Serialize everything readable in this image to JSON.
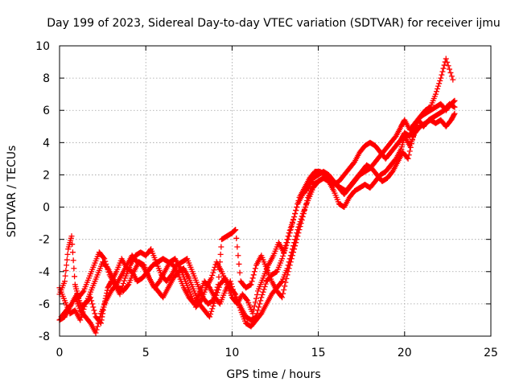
{
  "chart_data": {
    "type": "scatter",
    "title": "Day 199 of 2023, Sidereal Day-to-day VTEC variation (SDTVAR) for receiver ijmu",
    "xlabel": "GPS time / hours",
    "ylabel": "SDTVAR / TECUs",
    "xlim": [
      0,
      25
    ],
    "ylim": [
      -8,
      10
    ],
    "xticks": [
      "0",
      "5",
      "10",
      "15",
      "20",
      "25"
    ],
    "yticks": [
      "-8",
      "-6",
      "-4",
      "-2",
      "0",
      "2",
      "4",
      "6",
      "8",
      "10"
    ],
    "grid": true,
    "marker": "+",
    "color": "#ff0000",
    "series": [
      {
        "points": [
          [
            0.0,
            -5.0
          ],
          [
            0.3,
            -5.8
          ],
          [
            0.6,
            -6.6
          ],
          [
            0.9,
            -6.4
          ],
          [
            1.2,
            -7.0
          ],
          [
            1.5,
            -6.0
          ],
          [
            1.8,
            -5.6
          ],
          [
            2.1,
            -6.8
          ],
          [
            2.4,
            -7.2
          ],
          [
            2.6,
            -6.0
          ],
          [
            2.8,
            -5.0
          ],
          [
            3.0,
            -4.6
          ],
          [
            3.3,
            -4.0
          ],
          [
            3.6,
            -3.2
          ],
          [
            3.9,
            -3.8
          ],
          [
            4.2,
            -4.0
          ],
          [
            4.5,
            -4.6
          ],
          [
            4.8,
            -4.4
          ],
          [
            5.1,
            -4.0
          ],
          [
            5.4,
            -3.6
          ],
          [
            5.7,
            -3.4
          ],
          [
            6.0,
            -3.2
          ],
          [
            6.3,
            -3.4
          ],
          [
            6.6,
            -3.6
          ],
          [
            6.9,
            -4.2
          ],
          [
            7.2,
            -5.0
          ],
          [
            7.5,
            -5.6
          ],
          [
            7.8,
            -6.0
          ],
          [
            8.1,
            -5.4
          ],
          [
            8.4,
            -4.6
          ],
          [
            8.7,
            -5.0
          ],
          [
            9.0,
            -5.6
          ],
          [
            9.3,
            -6.0
          ],
          [
            9.6,
            -5.2
          ],
          [
            9.9,
            -4.6
          ],
          [
            10.2,
            -5.6
          ],
          [
            10.5,
            -6.2
          ],
          [
            10.8,
            -6.8
          ],
          [
            11.1,
            -7.0
          ],
          [
            11.4,
            -6.8
          ],
          [
            11.7,
            -5.6
          ],
          [
            12.0,
            -4.6
          ],
          [
            12.3,
            -4.2
          ],
          [
            12.6,
            -4.0
          ],
          [
            12.9,
            -3.2
          ],
          [
            13.2,
            -2.2
          ],
          [
            13.5,
            -1.0
          ],
          [
            13.8,
            0.2
          ],
          [
            14.1,
            0.8
          ],
          [
            14.4,
            1.2
          ],
          [
            14.7,
            1.8
          ],
          [
            15.0,
            2.0
          ],
          [
            15.3,
            2.2
          ],
          [
            15.6,
            2.0
          ],
          [
            15.9,
            1.6
          ],
          [
            16.2,
            1.2
          ],
          [
            16.5,
            0.8
          ],
          [
            16.8,
            1.2
          ],
          [
            17.1,
            1.6
          ],
          [
            17.4,
            2.0
          ],
          [
            17.7,
            2.2
          ],
          [
            18.0,
            2.4
          ],
          [
            18.3,
            2.8
          ],
          [
            18.6,
            3.2
          ],
          [
            18.9,
            3.6
          ],
          [
            19.2,
            4.0
          ],
          [
            19.5,
            4.4
          ],
          [
            19.8,
            5.0
          ],
          [
            20.0,
            5.4
          ],
          [
            20.3,
            4.8
          ],
          [
            20.6,
            5.2
          ],
          [
            20.9,
            5.6
          ],
          [
            21.2,
            5.8
          ],
          [
            21.5,
            6.0
          ],
          [
            21.8,
            6.2
          ],
          [
            22.1,
            6.4
          ],
          [
            22.4,
            6.0
          ],
          [
            22.7,
            6.4
          ],
          [
            22.9,
            6.6
          ]
        ]
      },
      {
        "points": [
          [
            0.0,
            -7.0
          ],
          [
            0.3,
            -6.8
          ],
          [
            0.6,
            -6.2
          ],
          [
            0.9,
            -5.6
          ],
          [
            1.2,
            -6.4
          ],
          [
            1.5,
            -6.8
          ],
          [
            1.8,
            -7.2
          ],
          [
            2.1,
            -7.8
          ],
          [
            2.4,
            -6.6
          ],
          [
            2.7,
            -5.8
          ],
          [
            3.0,
            -5.2
          ],
          [
            3.3,
            -4.8
          ],
          [
            3.6,
            -4.2
          ],
          [
            3.9,
            -3.6
          ],
          [
            4.2,
            -3.0
          ],
          [
            4.5,
            -3.4
          ],
          [
            4.8,
            -3.6
          ],
          [
            5.1,
            -4.2
          ],
          [
            5.4,
            -4.8
          ],
          [
            5.7,
            -5.2
          ],
          [
            6.0,
            -5.6
          ],
          [
            6.3,
            -5.0
          ],
          [
            6.6,
            -4.4
          ],
          [
            6.9,
            -4.0
          ],
          [
            7.2,
            -3.8
          ],
          [
            7.5,
            -4.4
          ],
          [
            7.8,
            -5.2
          ],
          [
            8.1,
            -6.0
          ],
          [
            8.4,
            -6.4
          ],
          [
            8.7,
            -6.8
          ],
          [
            9.0,
            -5.8
          ],
          [
            9.3,
            -4.8
          ],
          [
            9.6,
            -4.4
          ],
          [
            9.9,
            -5.0
          ],
          [
            10.2,
            -5.4
          ],
          [
            10.5,
            -6.4
          ],
          [
            10.8,
            -7.2
          ],
          [
            11.1,
            -7.4
          ],
          [
            11.4,
            -7.0
          ],
          [
            11.7,
            -6.6
          ],
          [
            12.0,
            -6.0
          ],
          [
            12.3,
            -5.4
          ],
          [
            12.6,
            -5.0
          ],
          [
            12.9,
            -4.6
          ],
          [
            13.2,
            -3.8
          ],
          [
            13.5,
            -2.6
          ],
          [
            13.8,
            -1.4
          ],
          [
            14.1,
            -0.4
          ],
          [
            14.4,
            0.4
          ],
          [
            14.7,
            1.2
          ],
          [
            15.0,
            1.6
          ],
          [
            15.3,
            1.8
          ],
          [
            15.6,
            1.6
          ],
          [
            15.9,
            1.0
          ],
          [
            16.2,
            0.2
          ],
          [
            16.5,
            0.0
          ],
          [
            16.8,
            0.6
          ],
          [
            17.1,
            1.0
          ],
          [
            17.4,
            1.2
          ],
          [
            17.7,
            1.4
          ],
          [
            18.0,
            1.2
          ],
          [
            18.3,
            1.6
          ],
          [
            18.6,
            2.0
          ],
          [
            18.9,
            2.2
          ],
          [
            19.2,
            2.6
          ],
          [
            19.5,
            3.0
          ],
          [
            19.8,
            3.6
          ],
          [
            20.0,
            4.4
          ],
          [
            20.3,
            3.8
          ],
          [
            20.6,
            4.6
          ],
          [
            20.9,
            5.0
          ],
          [
            21.2,
            5.2
          ],
          [
            21.5,
            5.4
          ],
          [
            21.8,
            5.2
          ],
          [
            22.1,
            5.4
          ],
          [
            22.4,
            5.0
          ],
          [
            22.7,
            5.4
          ],
          [
            22.9,
            5.8
          ]
        ]
      },
      {
        "points": [
          [
            0.0,
            -5.4
          ],
          [
            0.3,
            -4.6
          ],
          [
            0.5,
            -2.6
          ],
          [
            0.7,
            -1.8
          ],
          [
            0.9,
            -4.8
          ],
          [
            1.1,
            -5.6
          ],
          [
            1.4,
            -5.2
          ],
          [
            1.7,
            -4.4
          ],
          [
            2.0,
            -3.6
          ],
          [
            2.3,
            -2.8
          ],
          [
            2.6,
            -3.2
          ],
          [
            2.9,
            -4.2
          ],
          [
            3.2,
            -4.8
          ],
          [
            3.5,
            -5.4
          ],
          [
            3.8,
            -4.4
          ],
          [
            4.1,
            -3.6
          ],
          [
            4.4,
            -3.0
          ],
          [
            4.7,
            -2.8
          ],
          [
            5.0,
            -3.0
          ],
          [
            5.3,
            -2.6
          ],
          [
            5.6,
            -3.4
          ],
          [
            5.9,
            -4.2
          ],
          [
            6.2,
            -4.6
          ],
          [
            6.5,
            -4.2
          ],
          [
            6.8,
            -3.6
          ],
          [
            7.1,
            -3.4
          ],
          [
            7.4,
            -3.2
          ],
          [
            7.7,
            -4.0
          ],
          [
            8.0,
            -4.8
          ],
          [
            8.3,
            -5.6
          ],
          [
            8.6,
            -6.0
          ],
          [
            8.9,
            -5.8
          ],
          [
            9.2,
            -4.8
          ],
          [
            9.4,
            -2.0
          ],
          [
            9.7,
            -1.8
          ],
          [
            10.0,
            -1.6
          ],
          [
            10.2,
            -1.4
          ],
          [
            10.5,
            -4.6
          ],
          [
            10.8,
            -5.0
          ],
          [
            11.1,
            -4.8
          ],
          [
            11.4,
            -3.6
          ],
          [
            11.7,
            -3.0
          ],
          [
            12.0,
            -3.8
          ],
          [
            12.3,
            -4.6
          ],
          [
            12.6,
            -5.2
          ],
          [
            12.9,
            -5.6
          ],
          [
            13.2,
            -4.2
          ],
          [
            13.5,
            -3.0
          ],
          [
            13.8,
            -1.8
          ],
          [
            14.1,
            -0.6
          ],
          [
            14.4,
            0.6
          ],
          [
            14.7,
            1.4
          ],
          [
            15.0,
            1.6
          ],
          [
            15.3,
            1.8
          ],
          [
            15.6,
            1.6
          ],
          [
            15.9,
            1.4
          ],
          [
            16.2,
            1.6
          ],
          [
            16.5,
            2.0
          ],
          [
            16.8,
            2.4
          ],
          [
            17.1,
            2.8
          ],
          [
            17.4,
            3.4
          ],
          [
            17.7,
            3.8
          ],
          [
            18.0,
            4.0
          ],
          [
            18.3,
            3.8
          ],
          [
            18.6,
            3.4
          ],
          [
            18.9,
            3.0
          ],
          [
            19.2,
            3.4
          ],
          [
            19.5,
            3.8
          ],
          [
            19.8,
            4.2
          ],
          [
            20.0,
            4.6
          ],
          [
            20.3,
            4.4
          ],
          [
            20.6,
            5.0
          ],
          [
            20.9,
            5.6
          ],
          [
            21.2,
            6.0
          ],
          [
            21.5,
            6.2
          ],
          [
            21.8,
            7.0
          ],
          [
            22.1,
            8.0
          ],
          [
            22.4,
            9.2
          ],
          [
            22.8,
            7.9
          ]
        ]
      },
      {
        "points": [
          [
            0.1,
            -6.8
          ],
          [
            0.4,
            -6.4
          ],
          [
            0.7,
            -6.0
          ],
          [
            1.0,
            -5.4
          ],
          [
            1.3,
            -6.2
          ],
          [
            1.6,
            -5.8
          ],
          [
            1.9,
            -5.0
          ],
          [
            2.2,
            -4.2
          ],
          [
            2.5,
            -3.4
          ],
          [
            2.8,
            -3.8
          ],
          [
            3.1,
            -4.4
          ],
          [
            3.4,
            -5.0
          ],
          [
            3.7,
            -5.2
          ],
          [
            4.0,
            -4.8
          ],
          [
            4.3,
            -4.0
          ],
          [
            4.6,
            -3.4
          ],
          [
            4.9,
            -3.6
          ],
          [
            5.2,
            -4.4
          ],
          [
            5.5,
            -5.0
          ],
          [
            5.8,
            -4.6
          ],
          [
            6.1,
            -4.0
          ],
          [
            6.4,
            -3.4
          ],
          [
            6.7,
            -3.2
          ],
          [
            7.0,
            -3.8
          ],
          [
            7.3,
            -4.6
          ],
          [
            7.6,
            -5.4
          ],
          [
            7.9,
            -6.2
          ],
          [
            8.2,
            -5.8
          ],
          [
            8.5,
            -5.0
          ],
          [
            8.8,
            -4.4
          ],
          [
            9.1,
            -3.4
          ],
          [
            9.4,
            -4.0
          ],
          [
            9.7,
            -4.8
          ],
          [
            10.0,
            -5.6
          ],
          [
            10.3,
            -6.0
          ],
          [
            10.6,
            -5.4
          ],
          [
            10.9,
            -5.8
          ],
          [
            11.2,
            -6.6
          ],
          [
            11.5,
            -5.2
          ],
          [
            11.8,
            -4.4
          ],
          [
            12.1,
            -3.6
          ],
          [
            12.4,
            -3.0
          ],
          [
            12.7,
            -2.2
          ],
          [
            13.0,
            -2.8
          ],
          [
            13.3,
            -1.6
          ],
          [
            13.6,
            -0.6
          ],
          [
            13.9,
            0.6
          ],
          [
            14.2,
            1.2
          ],
          [
            14.5,
            1.8
          ],
          [
            14.8,
            2.2
          ],
          [
            15.1,
            2.2
          ],
          [
            15.4,
            2.0
          ],
          [
            15.7,
            1.8
          ],
          [
            16.0,
            1.4
          ],
          [
            16.3,
            1.2
          ],
          [
            16.6,
            1.0
          ],
          [
            16.9,
            1.4
          ],
          [
            17.2,
            1.8
          ],
          [
            17.5,
            2.2
          ],
          [
            17.8,
            2.6
          ],
          [
            18.1,
            2.4
          ],
          [
            18.4,
            2.0
          ],
          [
            18.7,
            1.6
          ],
          [
            19.0,
            1.8
          ],
          [
            19.3,
            2.2
          ],
          [
            19.6,
            2.8
          ],
          [
            19.9,
            3.4
          ],
          [
            20.2,
            3.0
          ],
          [
            20.5,
            4.4
          ],
          [
            20.8,
            5.4
          ],
          [
            21.1,
            5.0
          ],
          [
            21.4,
            5.4
          ],
          [
            21.7,
            5.6
          ],
          [
            22.0,
            5.8
          ],
          [
            22.3,
            6.0
          ],
          [
            22.6,
            6.4
          ],
          [
            22.9,
            6.2
          ]
        ]
      }
    ]
  }
}
